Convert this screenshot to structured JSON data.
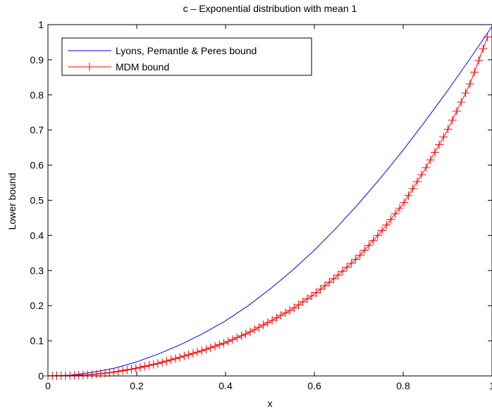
{
  "chart_data": {
    "type": "line",
    "title": "c – Exponential distribution with mean 1",
    "xlabel": "x",
    "ylabel": "Lower bound",
    "xlim": [
      0,
      1
    ],
    "ylim": [
      0,
      1
    ],
    "xticks": [
      0,
      0.2,
      0.4,
      0.6,
      0.8,
      1
    ],
    "xtick_labels": [
      "0",
      "0.2",
      "0.4",
      "0.6",
      "0.8",
      "1"
    ],
    "yticks": [
      0,
      0.1,
      0.2,
      0.3,
      0.4,
      0.5,
      0.6,
      0.7,
      0.8,
      0.9,
      1
    ],
    "ytick_labels": [
      "0",
      "0.1",
      "0.2",
      "0.3",
      "0.4",
      "0.5",
      "0.6",
      "0.7",
      "0.8",
      "0.9",
      "1"
    ],
    "grid": false,
    "legend_position": "top-left",
    "series": [
      {
        "name": "Lyons, Pemantle & Peres bound",
        "color": "#0000ff",
        "marker": "none",
        "x": [
          0,
          0.05,
          0.1,
          0.15,
          0.2,
          0.25,
          0.3,
          0.35,
          0.4,
          0.45,
          0.5,
          0.55,
          0.6,
          0.65,
          0.7,
          0.75,
          0.8,
          0.85,
          0.9,
          0.95,
          1
        ],
        "y": [
          0,
          0.002,
          0.01,
          0.022,
          0.04,
          0.063,
          0.09,
          0.121,
          0.157,
          0.199,
          0.247,
          0.3,
          0.358,
          0.422,
          0.491,
          0.565,
          0.643,
          0.726,
          0.812,
          0.902,
          0.995
        ]
      },
      {
        "name": "MDM bound",
        "color": "#ff0000",
        "marker": "+",
        "x": [
          0,
          0.05,
          0.1,
          0.15,
          0.2,
          0.25,
          0.3,
          0.35,
          0.4,
          0.45,
          0.5,
          0.55,
          0.6,
          0.65,
          0.7,
          0.75,
          0.8,
          0.85,
          0.9,
          0.95,
          0.99
        ],
        "y": [
          0,
          0.001,
          0.004,
          0.011,
          0.022,
          0.036,
          0.054,
          0.073,
          0.095,
          0.122,
          0.155,
          0.19,
          0.233,
          0.283,
          0.34,
          0.41,
          0.49,
          0.59,
          0.7,
          0.83,
          0.965
        ]
      }
    ]
  }
}
